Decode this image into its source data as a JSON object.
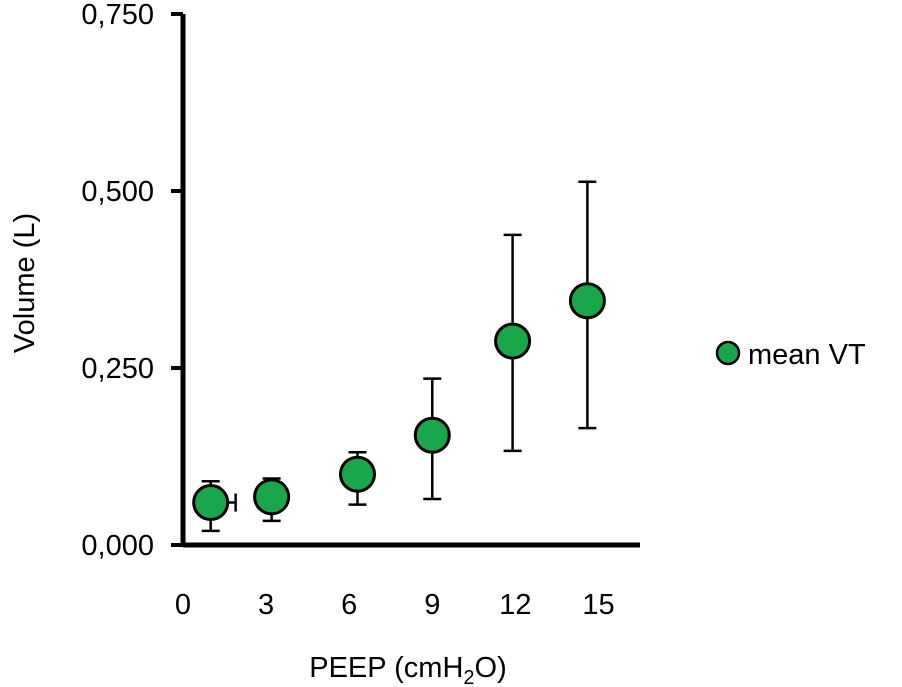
{
  "chart_data": {
    "type": "scatter",
    "xlabel_parts": {
      "main": "PEEP (cmH",
      "subscript": "2",
      "tail": "O)"
    },
    "ylabel": "Volume (L)",
    "xlim": [
      0,
      16.5
    ],
    "ylim": [
      0,
      0.75
    ],
    "x_ticks": [
      0,
      3,
      6,
      9,
      12,
      15
    ],
    "y_ticks": [
      0,
      0.25,
      0.5,
      0.75
    ],
    "x_tick_labels": [
      "0",
      "3",
      "6",
      "9",
      "12",
      "15"
    ],
    "y_tick_labels": [
      "0,000",
      "0,250",
      "0,500",
      "0,750"
    ],
    "legend": {
      "position": "right",
      "entries": [
        "mean VT"
      ]
    },
    "series": [
      {
        "name": "mean VT",
        "color": "#1aa64a",
        "points": [
          {
            "x": 1.0,
            "y": 0.06,
            "y_err_low": 0.04,
            "y_err_high": 0.03,
            "x_err_high": 0.9
          },
          {
            "x": 3.2,
            "y": 0.068,
            "y_err_low": 0.034,
            "y_err_high": 0.026,
            "x_err_high": 0
          },
          {
            "x": 6.3,
            "y": 0.1,
            "y_err_low": 0.043,
            "y_err_high": 0.031,
            "x_err_high": 0
          },
          {
            "x": 9.0,
            "y": 0.155,
            "y_err_low": 0.09,
            "y_err_high": 0.08,
            "x_err_high": 0
          },
          {
            "x": 11.9,
            "y": 0.288,
            "y_err_low": 0.155,
            "y_err_high": 0.15,
            "x_err_high": 0
          },
          {
            "x": 14.6,
            "y": 0.345,
            "y_err_low": 0.18,
            "y_err_high": 0.168,
            "x_err_high": 0
          }
        ]
      }
    ]
  }
}
